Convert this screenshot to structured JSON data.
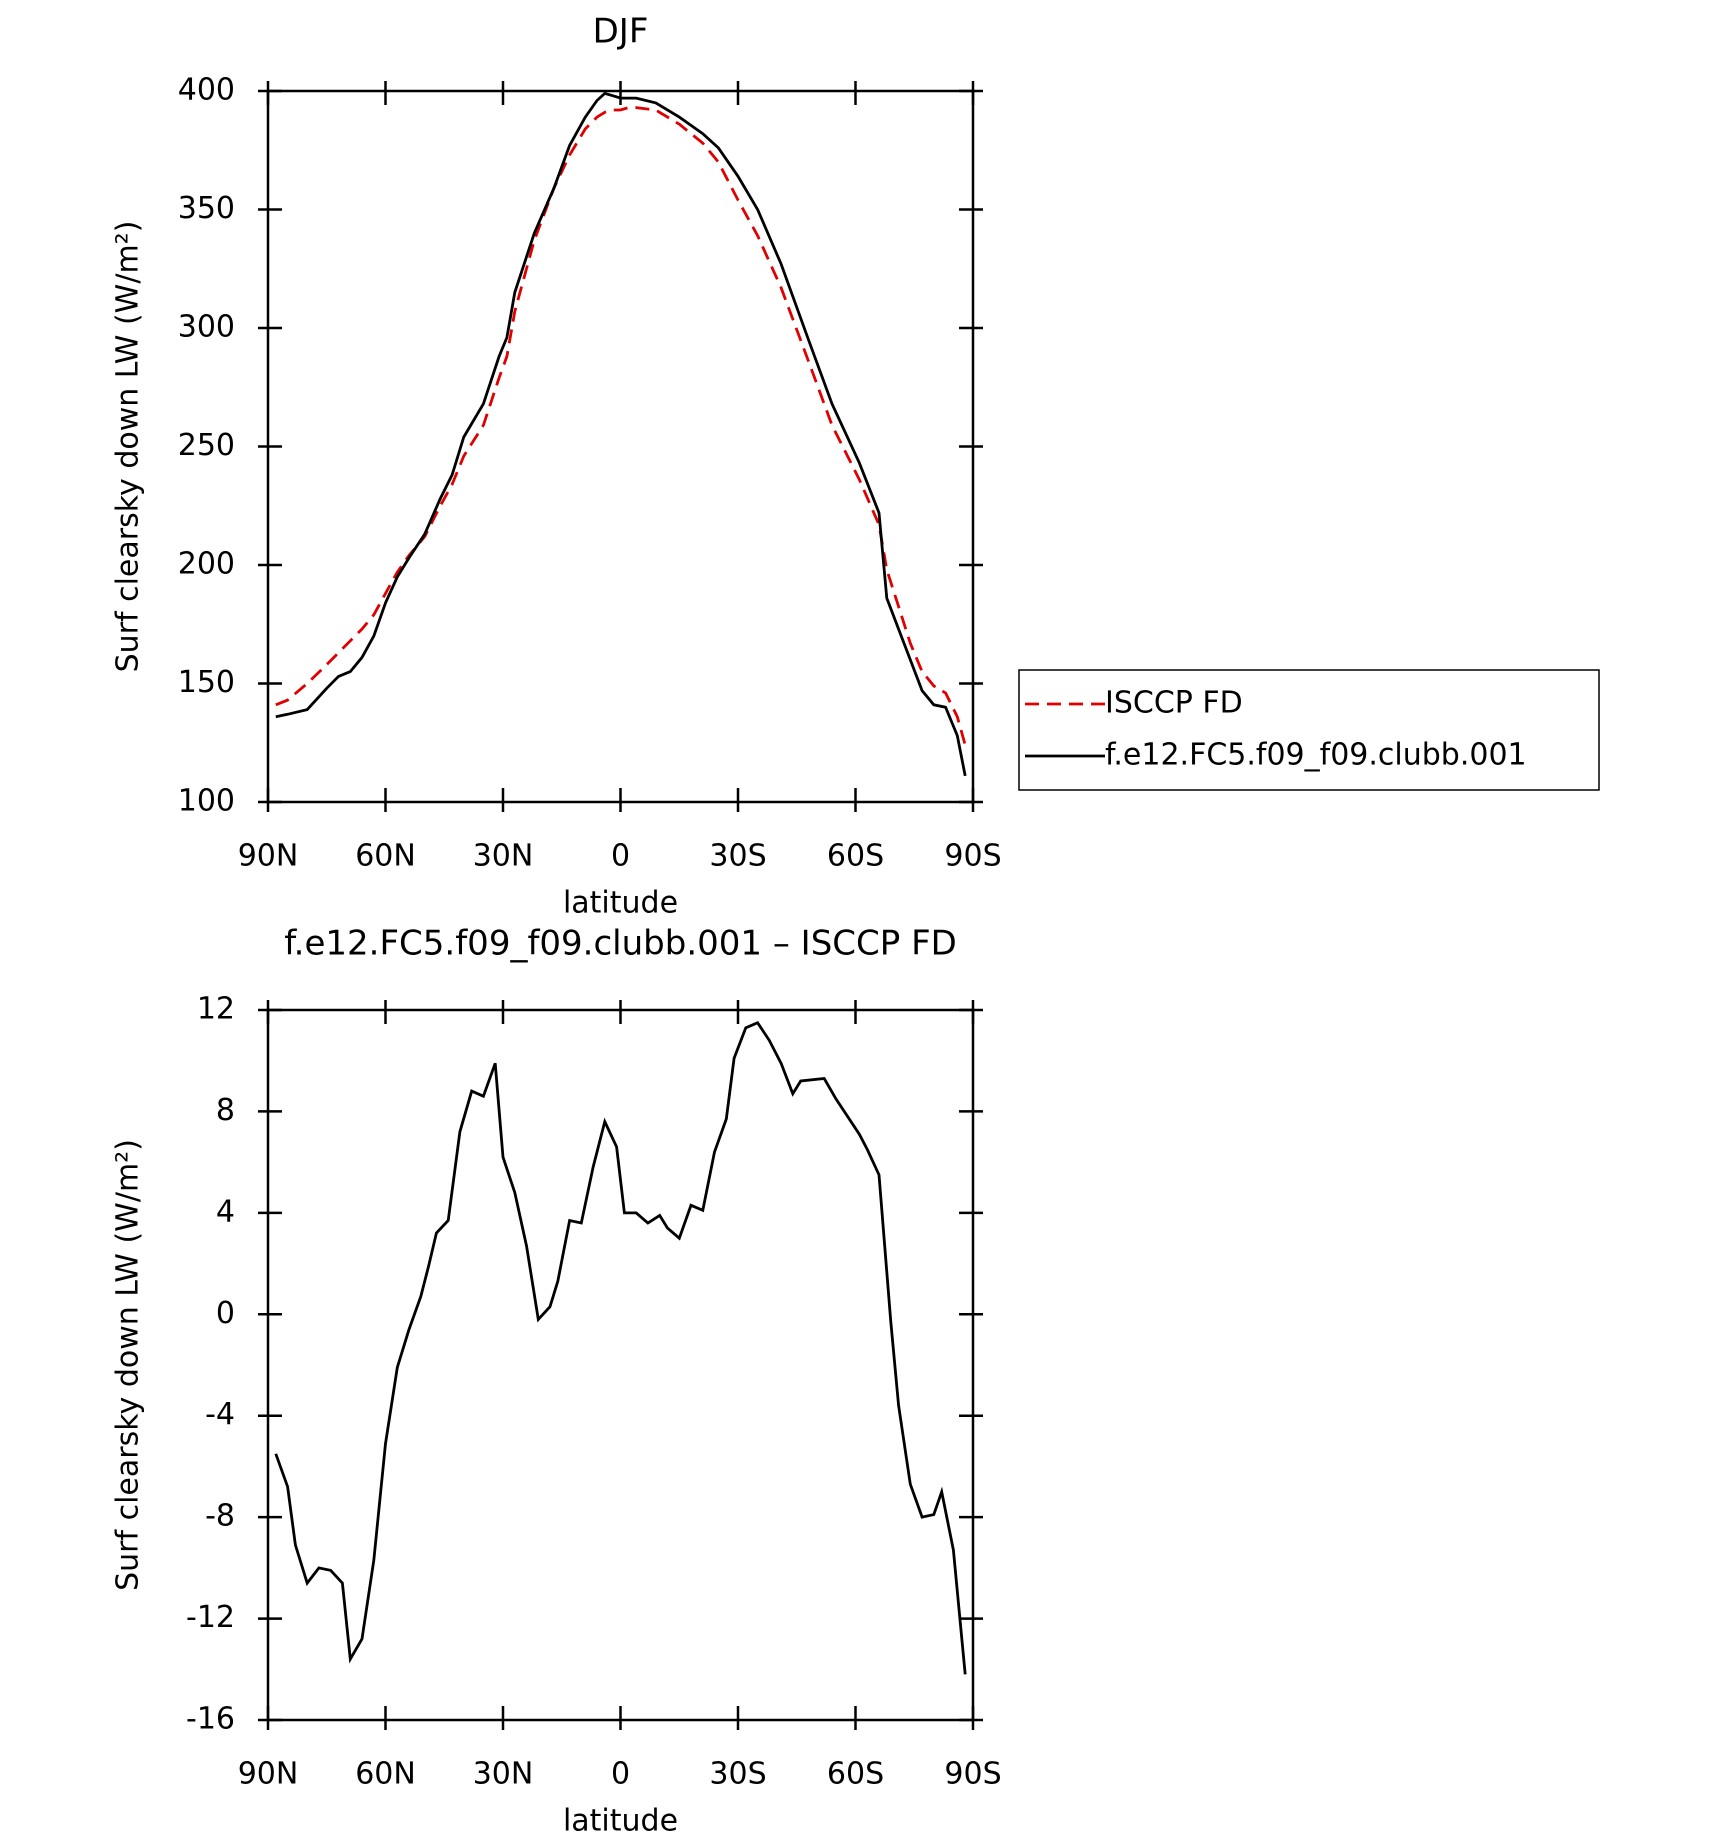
{
  "chart_data": [
    {
      "type": "line",
      "title": "DJF",
      "xlabel": "latitude",
      "ylabel": "Surf clearsky down LW (W/m²)",
      "x": [
        88,
        85,
        80,
        75,
        72,
        69,
        66,
        63,
        60,
        57,
        54,
        50,
        46,
        43,
        40,
        35,
        31,
        29,
        27,
        22,
        17,
        13,
        9,
        6,
        4,
        2,
        0,
        -2,
        -4,
        -9,
        -15,
        -21,
        -25,
        -30,
        -35,
        -41,
        -48,
        -54,
        -61,
        -66,
        -68,
        -74,
        -77,
        -80,
        -83,
        -86,
        -88
      ],
      "series": [
        {
          "name": "ISCCP FD",
          "color": "#e00000",
          "style": "dashed",
          "values": [
            141,
            143,
            150,
            158,
            163,
            168,
            173,
            179,
            188,
            197,
            204,
            212,
            225,
            234,
            246,
            259,
            279,
            288,
            307,
            337,
            359,
            373,
            384,
            389,
            391,
            392,
            392,
            393,
            393,
            392,
            386,
            378,
            370,
            354,
            339,
            317,
            286,
            259,
            236,
            217,
            198,
            167,
            155,
            149,
            146,
            136,
            124
          ]
        },
        {
          "name": "f.e12.FC5.f09_f09.clubb.001",
          "color": "#000000",
          "style": "solid",
          "values": [
            136,
            137,
            139,
            148,
            153,
            155,
            161,
            170,
            184,
            195,
            203,
            213,
            228,
            238,
            254,
            268,
            288,
            296,
            315,
            340,
            359,
            377,
            389,
            396,
            399,
            398,
            397,
            397,
            397,
            395,
            389,
            382,
            376,
            364,
            350,
            327,
            295,
            268,
            243,
            222,
            186,
            160,
            147,
            141,
            140,
            128,
            111
          ]
        }
      ],
      "xlim": [
        90,
        -90
      ],
      "xticks": [
        {
          "value": 90,
          "label": "90N"
        },
        {
          "value": 60,
          "label": "60N"
        },
        {
          "value": 30,
          "label": "30N"
        },
        0,
        {
          "value": -30,
          "label": "30S"
        },
        {
          "value": -60,
          "label": "60S"
        },
        {
          "value": -90,
          "label": "90S"
        }
      ],
      "ylim": [
        100,
        400
      ],
      "yticks": [
        100,
        150,
        200,
        250,
        300,
        350,
        400
      ],
      "legend": "right"
    },
    {
      "type": "line",
      "title": "f.e12.FC5.f09_f09.clubb.001 – ISCCP FD",
      "xlabel": "latitude",
      "ylabel": "Surf clearsky down LW (W/m²)",
      "x": [
        88,
        85,
        83,
        80,
        77,
        74,
        71,
        69,
        66,
        63,
        60,
        57,
        54,
        51,
        49,
        47,
        44,
        41,
        38,
        35,
        32,
        30,
        27,
        24,
        21,
        18,
        16,
        13,
        10,
        7,
        4,
        1,
        -1,
        -4,
        -7,
        -10,
        -12,
        -15,
        -18,
        -21,
        -24,
        -27,
        -29,
        -32,
        -35,
        -38,
        -41,
        -44,
        -46,
        -52,
        -55,
        -61,
        -63,
        -66,
        -69,
        -71,
        -74,
        -77,
        -80,
        -82,
        -85,
        -88
      ],
      "values": [
        -5.5,
        -6.8,
        -9.1,
        -10.6,
        -10.0,
        -10.1,
        -10.6,
        -13.6,
        -12.8,
        -9.7,
        -5.1,
        -2.1,
        -0.6,
        0.7,
        1.9,
        3.2,
        3.7,
        7.2,
        8.8,
        8.6,
        9.9,
        6.2,
        4.8,
        2.7,
        -0.2,
        0.3,
        1.3,
        3.7,
        3.6,
        5.8,
        7.6,
        6.6,
        4.0,
        4.0,
        3.6,
        3.9,
        3.4,
        3.0,
        4.3,
        4.1,
        6.4,
        7.7,
        10.1,
        11.3,
        11.5,
        10.8,
        9.9,
        8.7,
        9.2,
        9.3,
        8.5,
        7.1,
        6.5,
        5.5,
        -0.3,
        -3.6,
        -6.7,
        -8.0,
        -7.9,
        -7.0,
        -9.3,
        -14.2
      ],
      "color": "#000000",
      "xlim": [
        90,
        -90
      ],
      "xticks": [
        {
          "value": 90,
          "label": "90N"
        },
        {
          "value": 60,
          "label": "60N"
        },
        {
          "value": 30,
          "label": "30N"
        },
        0,
        {
          "value": -30,
          "label": "30S"
        },
        {
          "value": -60,
          "label": "60S"
        },
        {
          "value": -90,
          "label": "90S"
        }
      ],
      "ylim": [
        -16,
        12
      ],
      "yticks": [
        -16,
        -12,
        -8,
        -4,
        0,
        4,
        8,
        12
      ]
    }
  ]
}
